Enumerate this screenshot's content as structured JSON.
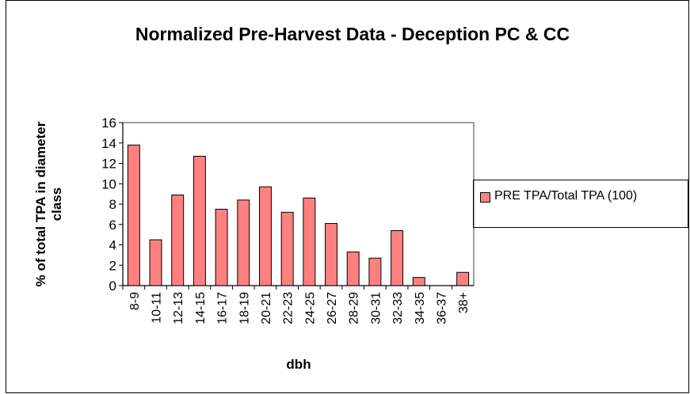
{
  "chart_data": {
    "type": "bar",
    "title": "Normalized Pre-Harvest Data - Deception PC & CC",
    "x_label": "dbh",
    "y_label": "% of total TPA in diameter class",
    "categories": [
      "8-9",
      "10-11",
      "12-13",
      "14-15",
      "16-17",
      "18-19",
      "20-21",
      "22-23",
      "24-25",
      "26-27",
      "28-29",
      "30-31",
      "32-33",
      "34-35",
      "36-37",
      "38+"
    ],
    "series": [
      {
        "name": "PRE TPA/Total TPA (100)",
        "color": "#ff8080",
        "values": [
          13.8,
          4.5,
          8.9,
          12.7,
          7.5,
          8.4,
          9.7,
          7.2,
          8.6,
          6.1,
          3.3,
          2.7,
          5.4,
          0.8,
          0,
          1.3
        ]
      }
    ],
    "ylim": [
      0,
      16
    ],
    "yticks": [
      0,
      2,
      4,
      6,
      8,
      10,
      12,
      14,
      16
    ],
    "grid": false,
    "legend": "right"
  }
}
